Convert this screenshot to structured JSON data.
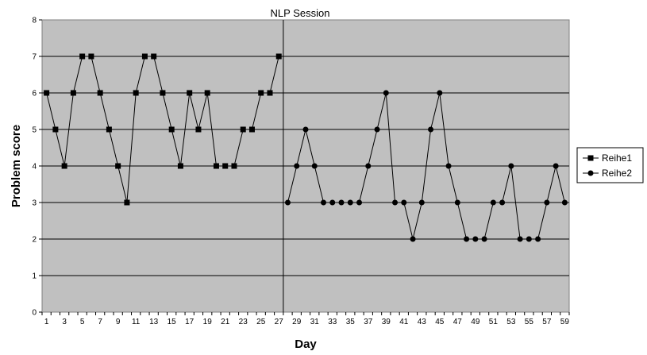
{
  "chart_data": {
    "type": "line",
    "title": "NLP Session",
    "xlabel": "Day",
    "ylabel": "Problem score",
    "xlim": [
      1,
      59
    ],
    "ylim": [
      0,
      8
    ],
    "y_ticks": [
      0,
      1,
      2,
      3,
      4,
      5,
      6,
      7,
      8
    ],
    "x_tick_labels": [
      1,
      3,
      5,
      7,
      9,
      11,
      13,
      15,
      17,
      19,
      21,
      23,
      25,
      27,
      29,
      31,
      33,
      35,
      37,
      39,
      41,
      43,
      45,
      47,
      49,
      51,
      53,
      55,
      57,
      59
    ],
    "grid": "horizontal",
    "plot_background": "#c0c0c0",
    "legend_position": "right",
    "phase_divider_after_day": 27,
    "series": [
      {
        "name": "Reihe1",
        "marker": "square",
        "color": "#000000",
        "x": [
          1,
          2,
          3,
          4,
          5,
          6,
          7,
          8,
          9,
          10,
          11,
          12,
          13,
          14,
          15,
          16,
          17,
          18,
          19,
          20,
          21,
          22,
          23,
          24,
          25,
          26,
          27
        ],
        "values": [
          6,
          5,
          4,
          6,
          7,
          7,
          6,
          5,
          4,
          3,
          6,
          7,
          7,
          6,
          5,
          4,
          6,
          5,
          6,
          4,
          4,
          4,
          5,
          5,
          6,
          6,
          7
        ]
      },
      {
        "name": "Reihe2",
        "marker": "circle",
        "color": "#000000",
        "x": [
          28,
          29,
          30,
          31,
          32,
          33,
          34,
          35,
          36,
          37,
          38,
          39,
          40,
          41,
          42,
          43,
          44,
          45,
          46,
          47,
          48,
          49,
          50,
          51,
          52,
          53,
          54,
          55,
          56,
          57,
          58,
          59
        ],
        "values": [
          3,
          4,
          5,
          4,
          3,
          3,
          3,
          3,
          3,
          4,
          5,
          6,
          3,
          3,
          2,
          3,
          5,
          6,
          4,
          3,
          2,
          2,
          2,
          3,
          3,
          4,
          2,
          2,
          2,
          3,
          4,
          3
        ]
      }
    ]
  }
}
